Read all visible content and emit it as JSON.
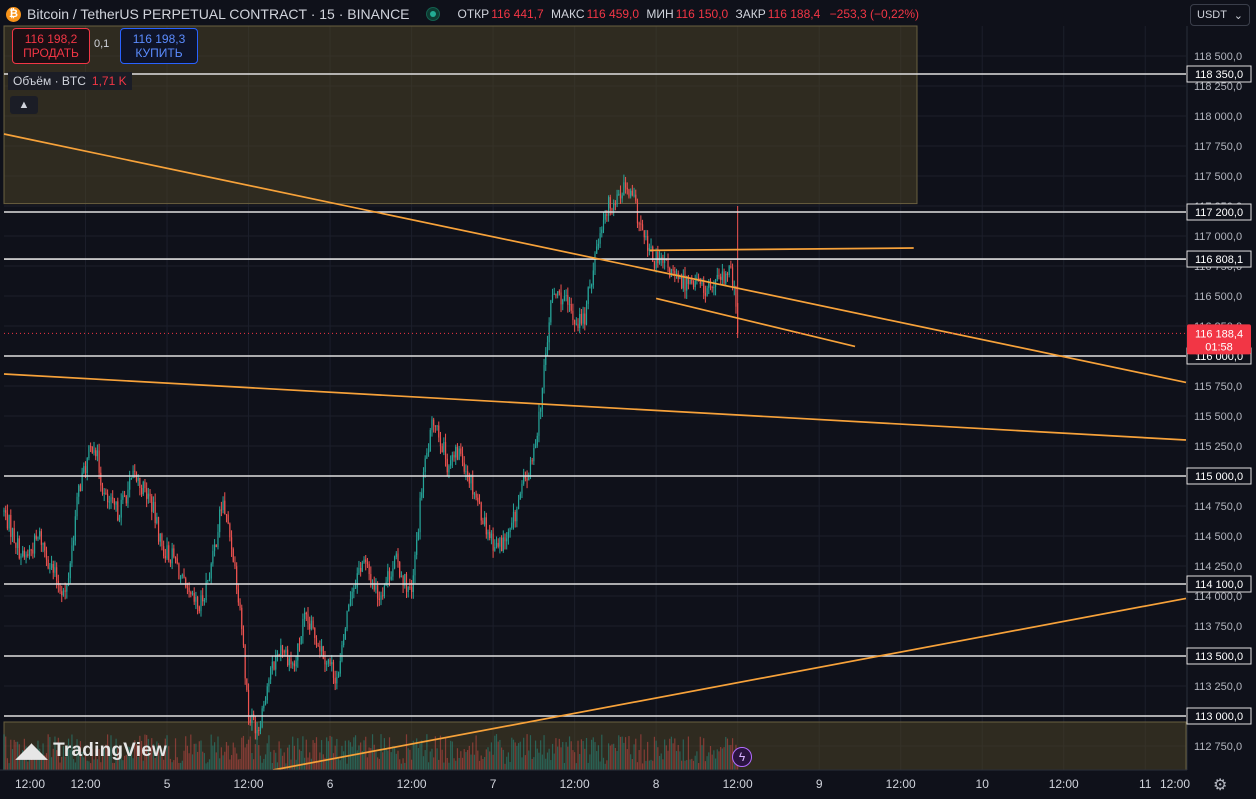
{
  "header": {
    "coin_icon": "bitcoin-icon",
    "title": "Bitcoin / TetherUS PERPETUAL CONTRACT · 15 · BINANCE",
    "ohlc": {
      "open_label": "ОТКР",
      "open": "116 441,7",
      "high_label": "МАКС",
      "high": "116 459,0",
      "low_label": "МИН",
      "low": "116 150,0",
      "close_label": "ЗАКР",
      "close": "116 188,4",
      "change": "−253,3 (−0,22%)"
    }
  },
  "trade": {
    "sell_price": "116 198,2",
    "sell_label": "ПРОДАТЬ",
    "quantity": "0,1",
    "buy_price": "116 198,3",
    "buy_label": "КУПИТЬ"
  },
  "volume_legend": {
    "label": "Объём · BTC",
    "value": "1,71 K"
  },
  "currency": {
    "label": "USDT",
    "icon": "chevron-down-icon"
  },
  "logo_text": "TradingView",
  "colors": {
    "up": "#26a69a",
    "down": "#ef5350",
    "trendline": "#f7a23a",
    "level": "#e0e0e0",
    "zone": "#4a4226",
    "current_price_bg": "#f23645"
  },
  "chart_data": {
    "type": "candlestick",
    "instrument": "BTCUSDT.P",
    "interval": "15",
    "ylim": [
      112550,
      118750
    ],
    "y_ticks": [
      118500,
      118250,
      118000,
      117750,
      117500,
      117250,
      117000,
      116750,
      116500,
      116250,
      116000,
      115750,
      115500,
      115250,
      115000,
      114750,
      114500,
      114250,
      114000,
      113750,
      113500,
      113250,
      113000,
      112750
    ],
    "y_tick_labels": [
      "118 500,0",
      "118 250,0",
      "118 000,0",
      "117 750,0",
      "117 500,0",
      "117 250,0",
      "117 000,0",
      "116 750,0",
      "116 500,0",
      "116 250,0",
      "116 000,0",
      "115 750,0",
      "115 500,0",
      "115 250,0",
      "115 000,0",
      "114 750,0",
      "114 500,0",
      "114 250,0",
      "114 000,0",
      "113 750,0",
      "113 500,0",
      "113 250,0",
      "113 000,0",
      "112 750,0"
    ],
    "xlim": [
      0,
      7.25
    ],
    "x_ticks": [
      0.5,
      1,
      1.5,
      2,
      2.5,
      3,
      3.5,
      4,
      4.5,
      5,
      5.5,
      6,
      6.5,
      7
    ],
    "x_tick_labels": [
      "12:00",
      "5",
      "12:00",
      "6",
      "12:00",
      "7",
      "12:00",
      "8",
      "12:00",
      "9",
      "12:00",
      "10",
      "12:00",
      "11"
    ],
    "horizontal_levels": [
      {
        "value": 118350,
        "label": "118 350,0"
      },
      {
        "value": 117200,
        "label": "117 200,0"
      },
      {
        "value": 116808.1,
        "label": "116 808,1"
      },
      {
        "value": 116000,
        "label": "116 000,0"
      },
      {
        "value": 115000,
        "label": "115 000,0"
      },
      {
        "value": 114100,
        "label": "114 100,0"
      },
      {
        "value": 113500,
        "label": "113 500,0"
      },
      {
        "value": 113000,
        "label": "113 000,0"
      }
    ],
    "current_price": {
      "value": 116188.4,
      "label": "116 188,4",
      "countdown": "01:58"
    },
    "zones": [
      {
        "x0": 0,
        "x1": 5.6,
        "y0": 117270,
        "y1": 118750
      },
      {
        "x0": 0,
        "x1": 7.25,
        "y0": 112550,
        "y1": 112950
      }
    ],
    "trendlines": [
      {
        "x0": 0,
        "y0": 117850,
        "x1": 7.25,
        "y1": 115780
      },
      {
        "x0": 0,
        "y0": 115850,
        "x1": 7.25,
        "y1": 115300
      },
      {
        "x0": 1.65,
        "y0": 112550,
        "x1": 7.25,
        "y1": 113980
      },
      {
        "x0": 3.96,
        "y0": 116880,
        "x1": 5.58,
        "y1": 116900
      },
      {
        "x0": 4.0,
        "y0": 116480,
        "x1": 5.22,
        "y1": 116080
      }
    ],
    "price_anchors": [
      [
        0.0,
        114700
      ],
      [
        0.12,
        114300
      ],
      [
        0.22,
        114500
      ],
      [
        0.3,
        114200
      ],
      [
        0.38,
        114000
      ],
      [
        0.46,
        114900
      ],
      [
        0.55,
        115300
      ],
      [
        0.62,
        114800
      ],
      [
        0.7,
        114700
      ],
      [
        0.8,
        115000
      ],
      [
        0.9,
        114800
      ],
      [
        0.97,
        114400
      ],
      [
        1.05,
        114300
      ],
      [
        1.12,
        114000
      ],
      [
        1.2,
        113900
      ],
      [
        1.28,
        114300
      ],
      [
        1.34,
        114800
      ],
      [
        1.4,
        114400
      ],
      [
        1.45,
        113900
      ],
      [
        1.5,
        113000
      ],
      [
        1.56,
        112900
      ],
      [
        1.62,
        113300
      ],
      [
        1.7,
        113600
      ],
      [
        1.78,
        113400
      ],
      [
        1.84,
        113800
      ],
      [
        1.9,
        113700
      ],
      [
        1.97,
        113500
      ],
      [
        2.05,
        113300
      ],
      [
        2.12,
        114000
      ],
      [
        2.2,
        114300
      ],
      [
        2.3,
        114000
      ],
      [
        2.4,
        114300
      ],
      [
        2.5,
        114000
      ],
      [
        2.57,
        115000
      ],
      [
        2.64,
        115500
      ],
      [
        2.72,
        115100
      ],
      [
        2.8,
        115200
      ],
      [
        2.88,
        114900
      ],
      [
        2.95,
        114600
      ],
      [
        3.02,
        114400
      ],
      [
        3.1,
        114500
      ],
      [
        3.18,
        114900
      ],
      [
        3.24,
        115100
      ],
      [
        3.3,
        115700
      ],
      [
        3.36,
        116500
      ],
      [
        3.42,
        116500
      ],
      [
        3.5,
        116300
      ],
      [
        3.56,
        116300
      ],
      [
        3.62,
        116800
      ],
      [
        3.68,
        117200
      ],
      [
        3.74,
        117300
      ],
      [
        3.8,
        117400
      ],
      [
        3.86,
        117300
      ],
      [
        3.92,
        117000
      ],
      [
        3.98,
        116800
      ],
      [
        4.06,
        116750
      ],
      [
        4.14,
        116600
      ],
      [
        4.22,
        116650
      ],
      [
        4.3,
        116550
      ],
      [
        4.38,
        116600
      ],
      [
        4.46,
        116700
      ],
      [
        4.5,
        116300
      ]
    ]
  }
}
